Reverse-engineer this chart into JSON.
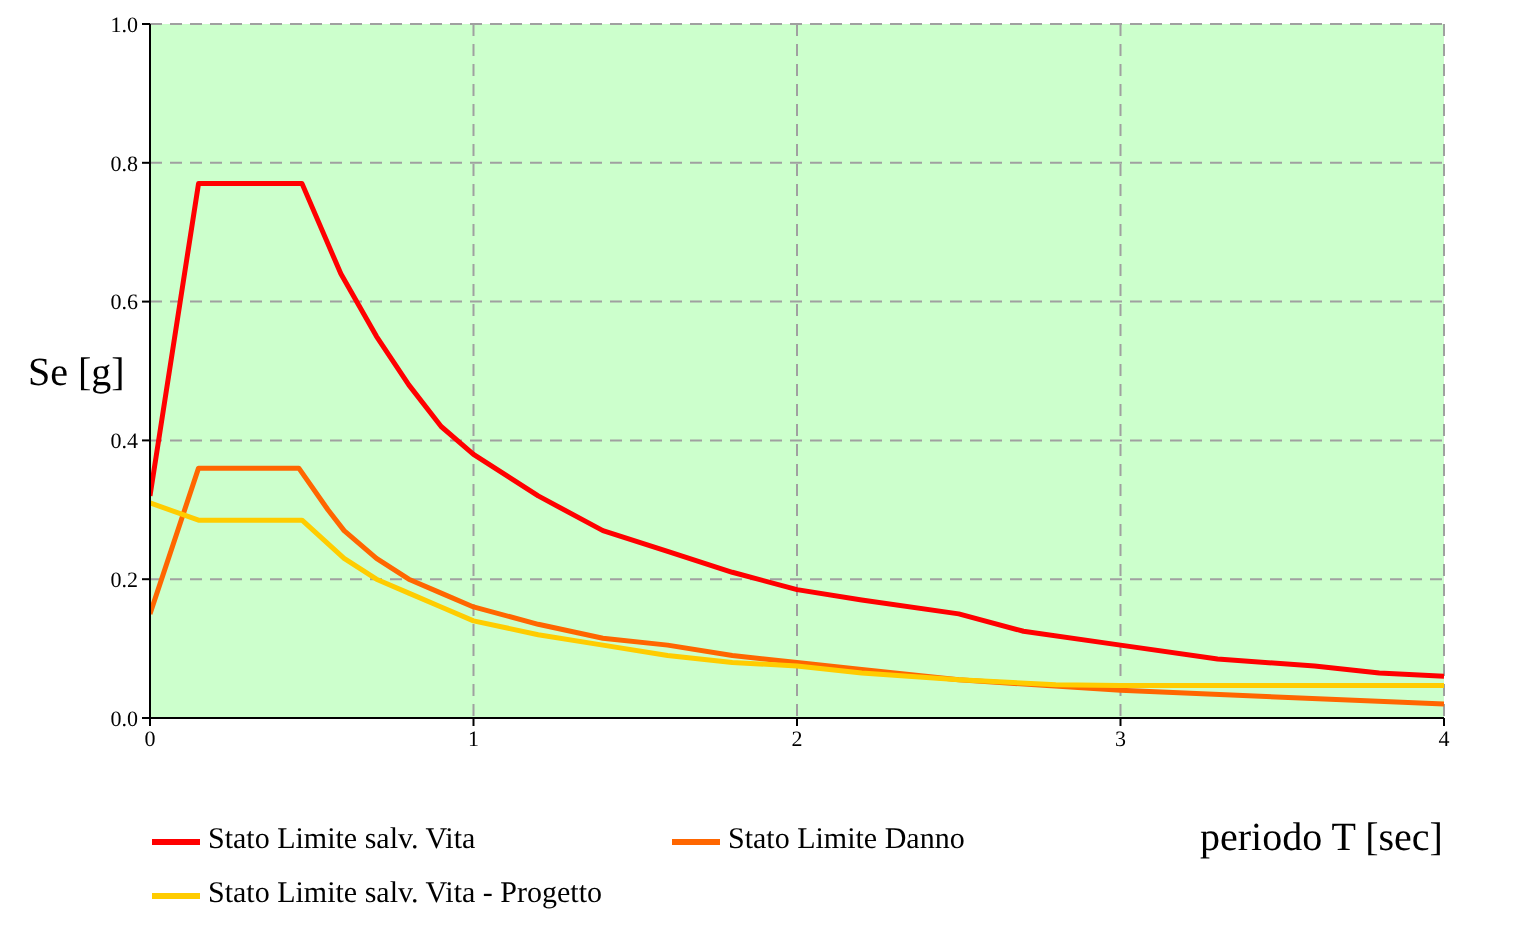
{
  "chart_data": {
    "type": "line",
    "xlabel": "periodo T [sec]",
    "ylabel": "Se [g]",
    "xlim": [
      0,
      4
    ],
    "xticks": [
      0,
      1,
      2,
      3,
      4
    ],
    "ylim": [
      0,
      1
    ],
    "yticks": [
      {
        "value": 0,
        "label": "0.0"
      },
      {
        "value": 0.2,
        "label": "0.2"
      },
      {
        "value": 0.4,
        "label": "0.4"
      },
      {
        "value": 0.6,
        "label": "0.6"
      },
      {
        "value": 0.8,
        "label": "0.8"
      },
      {
        "value": 1,
        "label": "1.0"
      }
    ],
    "grid": true,
    "legend": "bottom",
    "line_style": "solid",
    "series": [
      {
        "name": "Stato Limite salv. Vita",
        "color": "#ff0000",
        "x": [
          0,
          0.15,
          0.47,
          0.59,
          0.7,
          0.8,
          0.9,
          1.0,
          1.2,
          1.4,
          1.6,
          1.8,
          2.0,
          2.2,
          2.5,
          2.7,
          3.0,
          3.3,
          3.6,
          3.8,
          4.0
        ],
        "values": [
          0.32,
          0.77,
          0.77,
          0.64,
          0.55,
          0.48,
          0.42,
          0.38,
          0.32,
          0.27,
          0.24,
          0.21,
          0.185,
          0.17,
          0.15,
          0.125,
          0.105,
          0.085,
          0.075,
          0.065,
          0.06
        ]
      },
      {
        "name": "Stato Limite Danno",
        "color": "#ff6600",
        "x": [
          0,
          0.15,
          0.46,
          0.55,
          0.6,
          0.7,
          0.8,
          0.9,
          1.0,
          1.2,
          1.4,
          1.6,
          1.8,
          2.0,
          2.2,
          2.5,
          3.0,
          3.5,
          4.0
        ],
        "values": [
          0.15,
          0.36,
          0.36,
          0.3,
          0.27,
          0.23,
          0.2,
          0.18,
          0.16,
          0.135,
          0.115,
          0.105,
          0.09,
          0.08,
          0.07,
          0.055,
          0.04,
          0.03,
          0.02
        ]
      },
      {
        "name": "Stato Limite salv. Vita - Progetto",
        "color": "#ffcc00",
        "x": [
          0,
          0.15,
          0.47,
          0.6,
          0.7,
          0.8,
          0.9,
          1.0,
          1.2,
          1.4,
          1.6,
          1.8,
          2.0,
          2.2,
          2.5,
          2.8,
          3.0,
          4.0
        ],
        "values": [
          0.31,
          0.285,
          0.285,
          0.23,
          0.2,
          0.18,
          0.16,
          0.14,
          0.12,
          0.105,
          0.09,
          0.08,
          0.075,
          0.065,
          0.055,
          0.048,
          0.047,
          0.047
        ]
      }
    ]
  }
}
